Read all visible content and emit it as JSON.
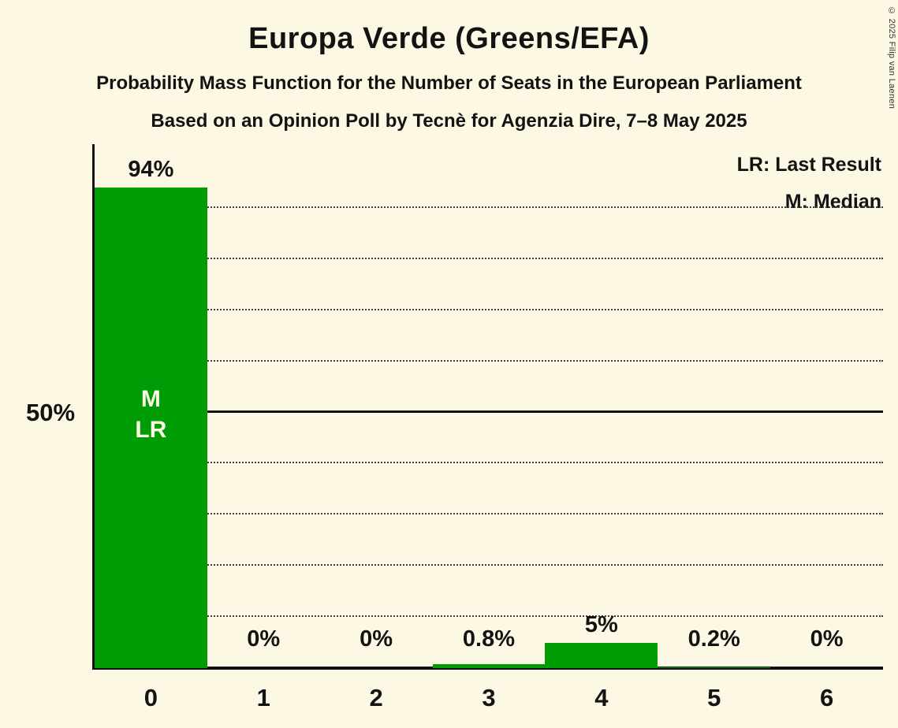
{
  "title": "Europa Verde (Greens/EFA)",
  "subtitle1": "Probability Mass Function for the Number of Seats in the European Parliament",
  "subtitle2": "Based on an Opinion Poll by Tecnè for Agenzia Dire, 7–8 May 2025",
  "copyright": "© 2025 Filip van Laenen",
  "legend": {
    "lr": "LR: Last Result",
    "m": "M: Median"
  },
  "y_axis": {
    "mid_label": "50%"
  },
  "colors": {
    "background": "#FCF8E3",
    "bar": "#009C06",
    "text": "#131313"
  },
  "chart_data": {
    "type": "bar",
    "categories": [
      "0",
      "1",
      "2",
      "3",
      "4",
      "5",
      "6"
    ],
    "values": [
      94,
      0,
      0,
      0.8,
      5,
      0.2,
      0
    ],
    "bar_labels": [
      "94%",
      "0%",
      "0%",
      "0.8%",
      "5%",
      "0.2%",
      "0%"
    ],
    "title": "Europa Verde (Greens/EFA)",
    "xlabel": "",
    "ylabel": "",
    "ylim": [
      0,
      100
    ],
    "gridlines_pct": [
      10,
      20,
      30,
      40,
      50,
      60,
      70,
      80,
      90
    ],
    "solid_line_pct": 50,
    "median_seat": "0",
    "last_result_seat": "0",
    "median_marker": "M",
    "last_result_marker": "LR",
    "legend_position": "top-right",
    "grid": true
  }
}
